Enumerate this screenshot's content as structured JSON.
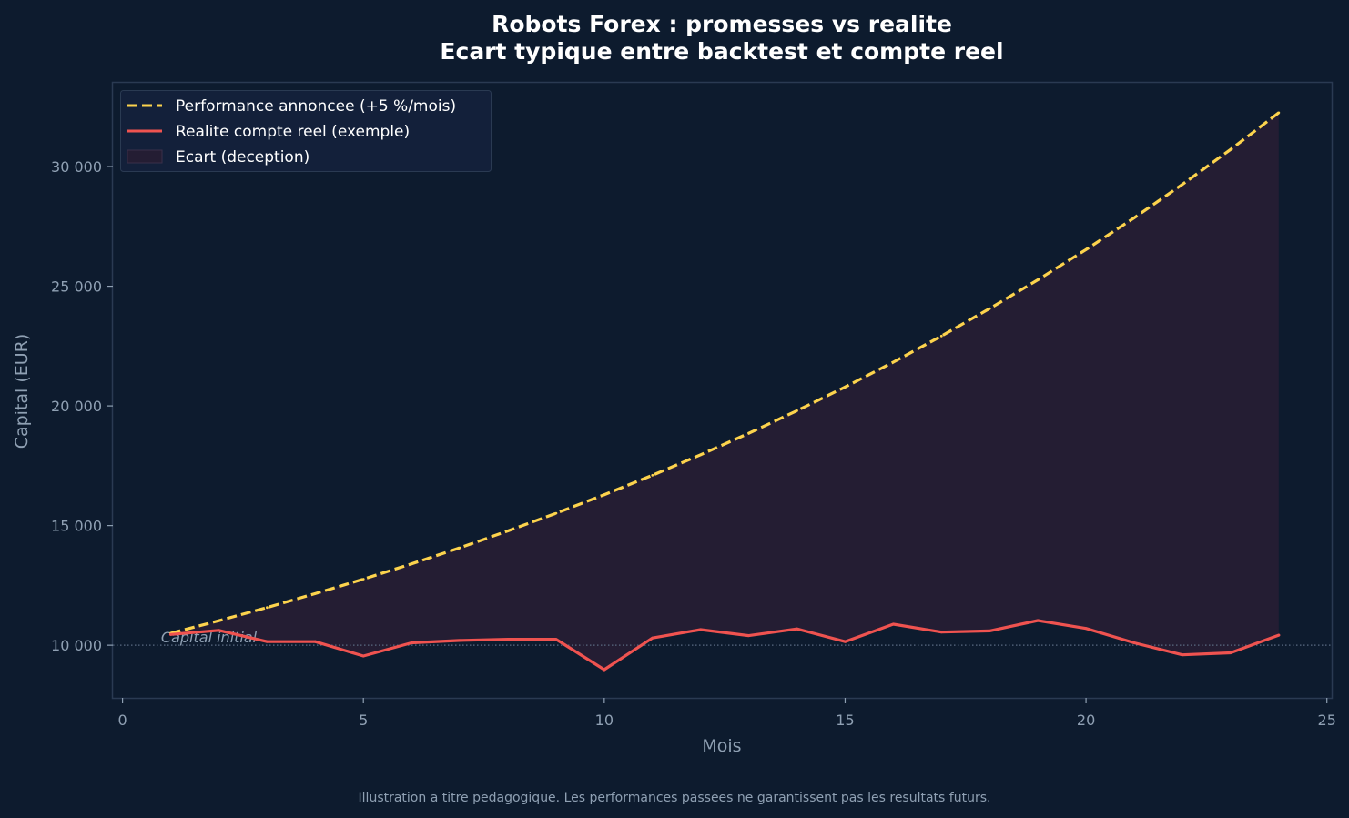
{
  "chart_data": {
    "type": "line",
    "title": "Robots Forex : promesses vs realite",
    "subtitle": "Ecart typique entre backtest et compte reel",
    "xlabel": "Mois",
    "ylabel": "Capital (EUR)",
    "xlim": [
      -0.2,
      25.1
    ],
    "ylim": [
      7800,
      33500
    ],
    "xticks": [
      0,
      5,
      10,
      15,
      20,
      25
    ],
    "yticks": [
      10000,
      15000,
      20000,
      25000,
      30000
    ],
    "ytick_labels": [
      "10 000",
      "15 000",
      "20 000",
      "25 000",
      "30 000"
    ],
    "x": [
      1,
      2,
      3,
      4,
      5,
      6,
      7,
      8,
      9,
      10,
      11,
      12,
      13,
      14,
      15,
      16,
      17,
      18,
      19,
      20,
      21,
      22,
      23,
      24
    ],
    "series": [
      {
        "name": "Performance annoncee (+5 %/mois)",
        "style": "dashed",
        "color": "#fcd34d",
        "values": [
          10500,
          11025,
          11576,
          12155,
          12763,
          13401,
          14071,
          14775,
          15513,
          16289,
          17103,
          17959,
          18856,
          19799,
          20789,
          21829,
          22920,
          24066,
          25270,
          26533,
          27860,
          29253,
          30715,
          32251
        ]
      },
      {
        "name": "Realite compte reel (exemple)",
        "style": "solid",
        "color": "#ef5350",
        "values": [
          10450,
          10620,
          10150,
          10150,
          9550,
          10100,
          10200,
          10250,
          10250,
          8980,
          10300,
          10650,
          10400,
          10680,
          10150,
          10880,
          10550,
          10600,
          11030,
          10700,
          10100,
          9600,
          9680,
          10420
        ]
      }
    ],
    "fill_between": {
      "name": "Ecart (deception)",
      "color": "#241d33"
    },
    "reference_line": {
      "y": 10000,
      "label": "Capital initial",
      "style": "dotted"
    },
    "legend": "top-left",
    "grid": false,
    "footnote": "Illustration a titre pedagogique. Les performances passees ne garantissent pas les resultats futurs.",
    "colors": {
      "background": "#0d1b2e",
      "axes": "#2a3a52",
      "text": "#8fa0b3"
    }
  }
}
